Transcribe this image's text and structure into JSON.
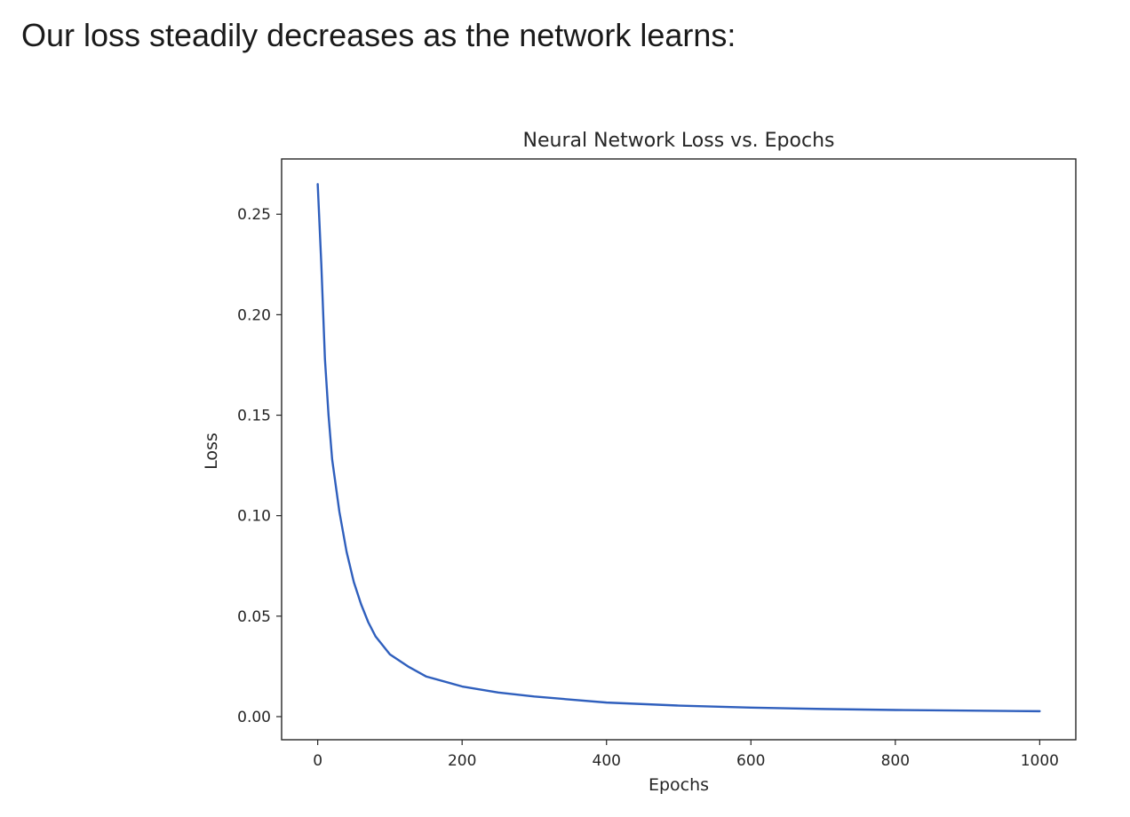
{
  "intro_text": "Our loss steadily decreases as the network learns:",
  "chart_data": {
    "type": "line",
    "title": "Neural Network Loss vs. Epochs",
    "xlabel": "Epochs",
    "ylabel": "Loss",
    "xlim": [
      -50,
      1050
    ],
    "ylim": [
      -0.0115,
      0.2775
    ],
    "xticks": [
      0,
      200,
      400,
      600,
      800,
      1000
    ],
    "xtick_labels": [
      "0",
      "200",
      "400",
      "600",
      "800",
      "1000"
    ],
    "yticks": [
      0.0,
      0.05,
      0.1,
      0.15,
      0.2,
      0.25
    ],
    "ytick_labels": [
      "0.00",
      "0.05",
      "0.10",
      "0.15",
      "0.20",
      "0.25"
    ],
    "grid": false,
    "line_color": "#2f5fbd",
    "series": [
      {
        "x": [
          0,
          5,
          10,
          15,
          20,
          30,
          40,
          50,
          60,
          70,
          80,
          100,
          125,
          150,
          200,
          250,
          300,
          400,
          500,
          600,
          700,
          800,
          900,
          1000
        ],
        "values": [
          0.265,
          0.225,
          0.178,
          0.15,
          0.128,
          0.102,
          0.082,
          0.067,
          0.056,
          0.047,
          0.04,
          0.031,
          0.025,
          0.02,
          0.015,
          0.012,
          0.01,
          0.007,
          0.0055,
          0.0045,
          0.0038,
          0.0033,
          0.003,
          0.0027
        ]
      }
    ]
  }
}
